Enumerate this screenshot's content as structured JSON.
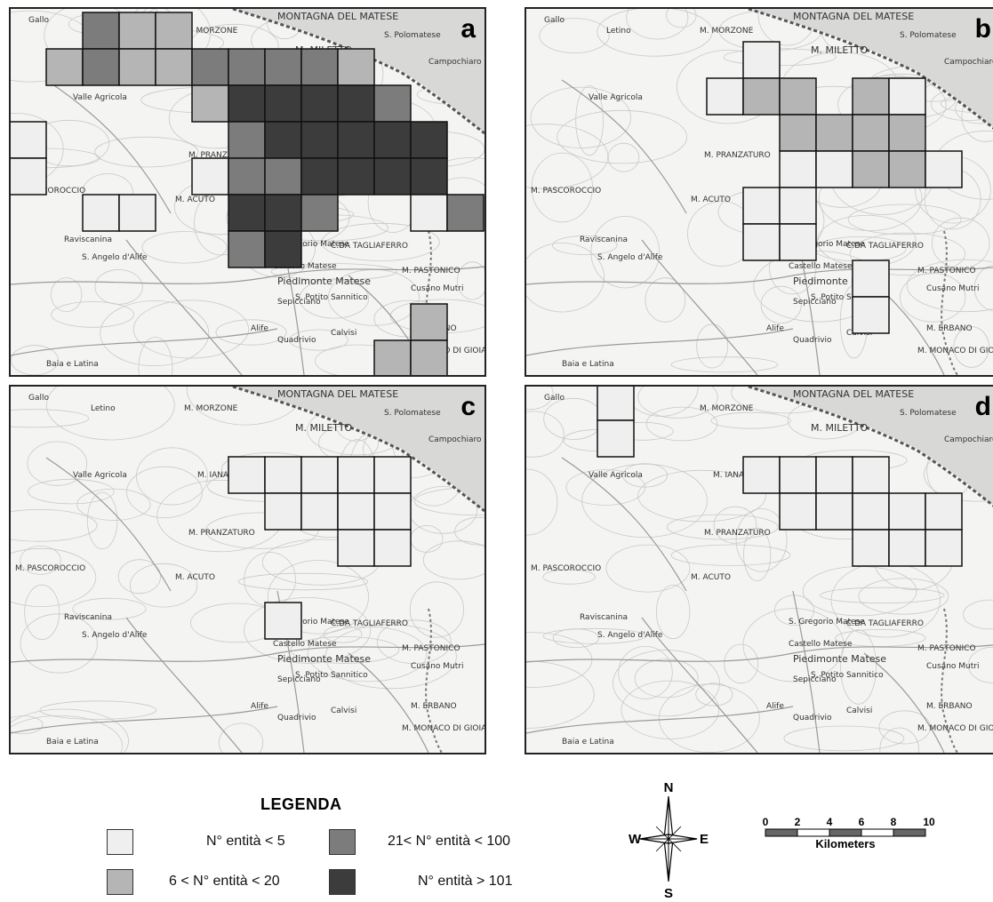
{
  "panels": [
    {
      "id": "a",
      "letter": "a",
      "pos": [
        10,
        8
      ]
    },
    {
      "id": "b",
      "letter": "b",
      "pos": [
        590,
        8
      ]
    },
    {
      "id": "c",
      "letter": "c",
      "pos": [
        10,
        433
      ]
    },
    {
      "id": "d",
      "letter": "d",
      "pos": [
        590,
        433
      ]
    }
  ],
  "place_names": [
    "Gallo",
    "Letino",
    "M. MORZONE",
    "MONTAGNA DEL MATESE",
    "M. MILETTO",
    "S. Polomatese",
    "Campochiaro",
    "M. IANARA",
    "Valle Agricola",
    "M. PRANZATURO",
    "S. Gregorio Matese",
    "Castello Matese",
    "Piedimonte Matese",
    "M. PASTONICO",
    "Raviscanina",
    "S. Angelo d'Alife",
    "Alife",
    "Cusano Mutri",
    "M. ERBANO",
    "Baia e Latina",
    "S. Potito Sannitico",
    "M. MONACO DI GIOIA",
    "M. ACUTO",
    "Sepicciano",
    "Quadrivio",
    "Calvisi",
    "M. PASCOROCCIO",
    "C.DA TAGLIAFERRO"
  ],
  "legend": {
    "title": "LEGENDA",
    "classes": [
      {
        "label": "N° entità < 5",
        "color": "#efefef"
      },
      {
        "label": "6 < N° entità < 20",
        "color": "#b5b5b5"
      },
      {
        "label": "21< N° entità < 100",
        "color": "#7c7c7c"
      },
      {
        "label": "N° entità > 101",
        "color": "#3c3c3c"
      }
    ]
  },
  "compass": {
    "n": "N",
    "s": "S",
    "e": "E",
    "w": "W"
  },
  "scale": {
    "ticks": [
      "0",
      "2",
      "4",
      "6",
      "8",
      "10"
    ],
    "unit": "Kilometers"
  }
}
